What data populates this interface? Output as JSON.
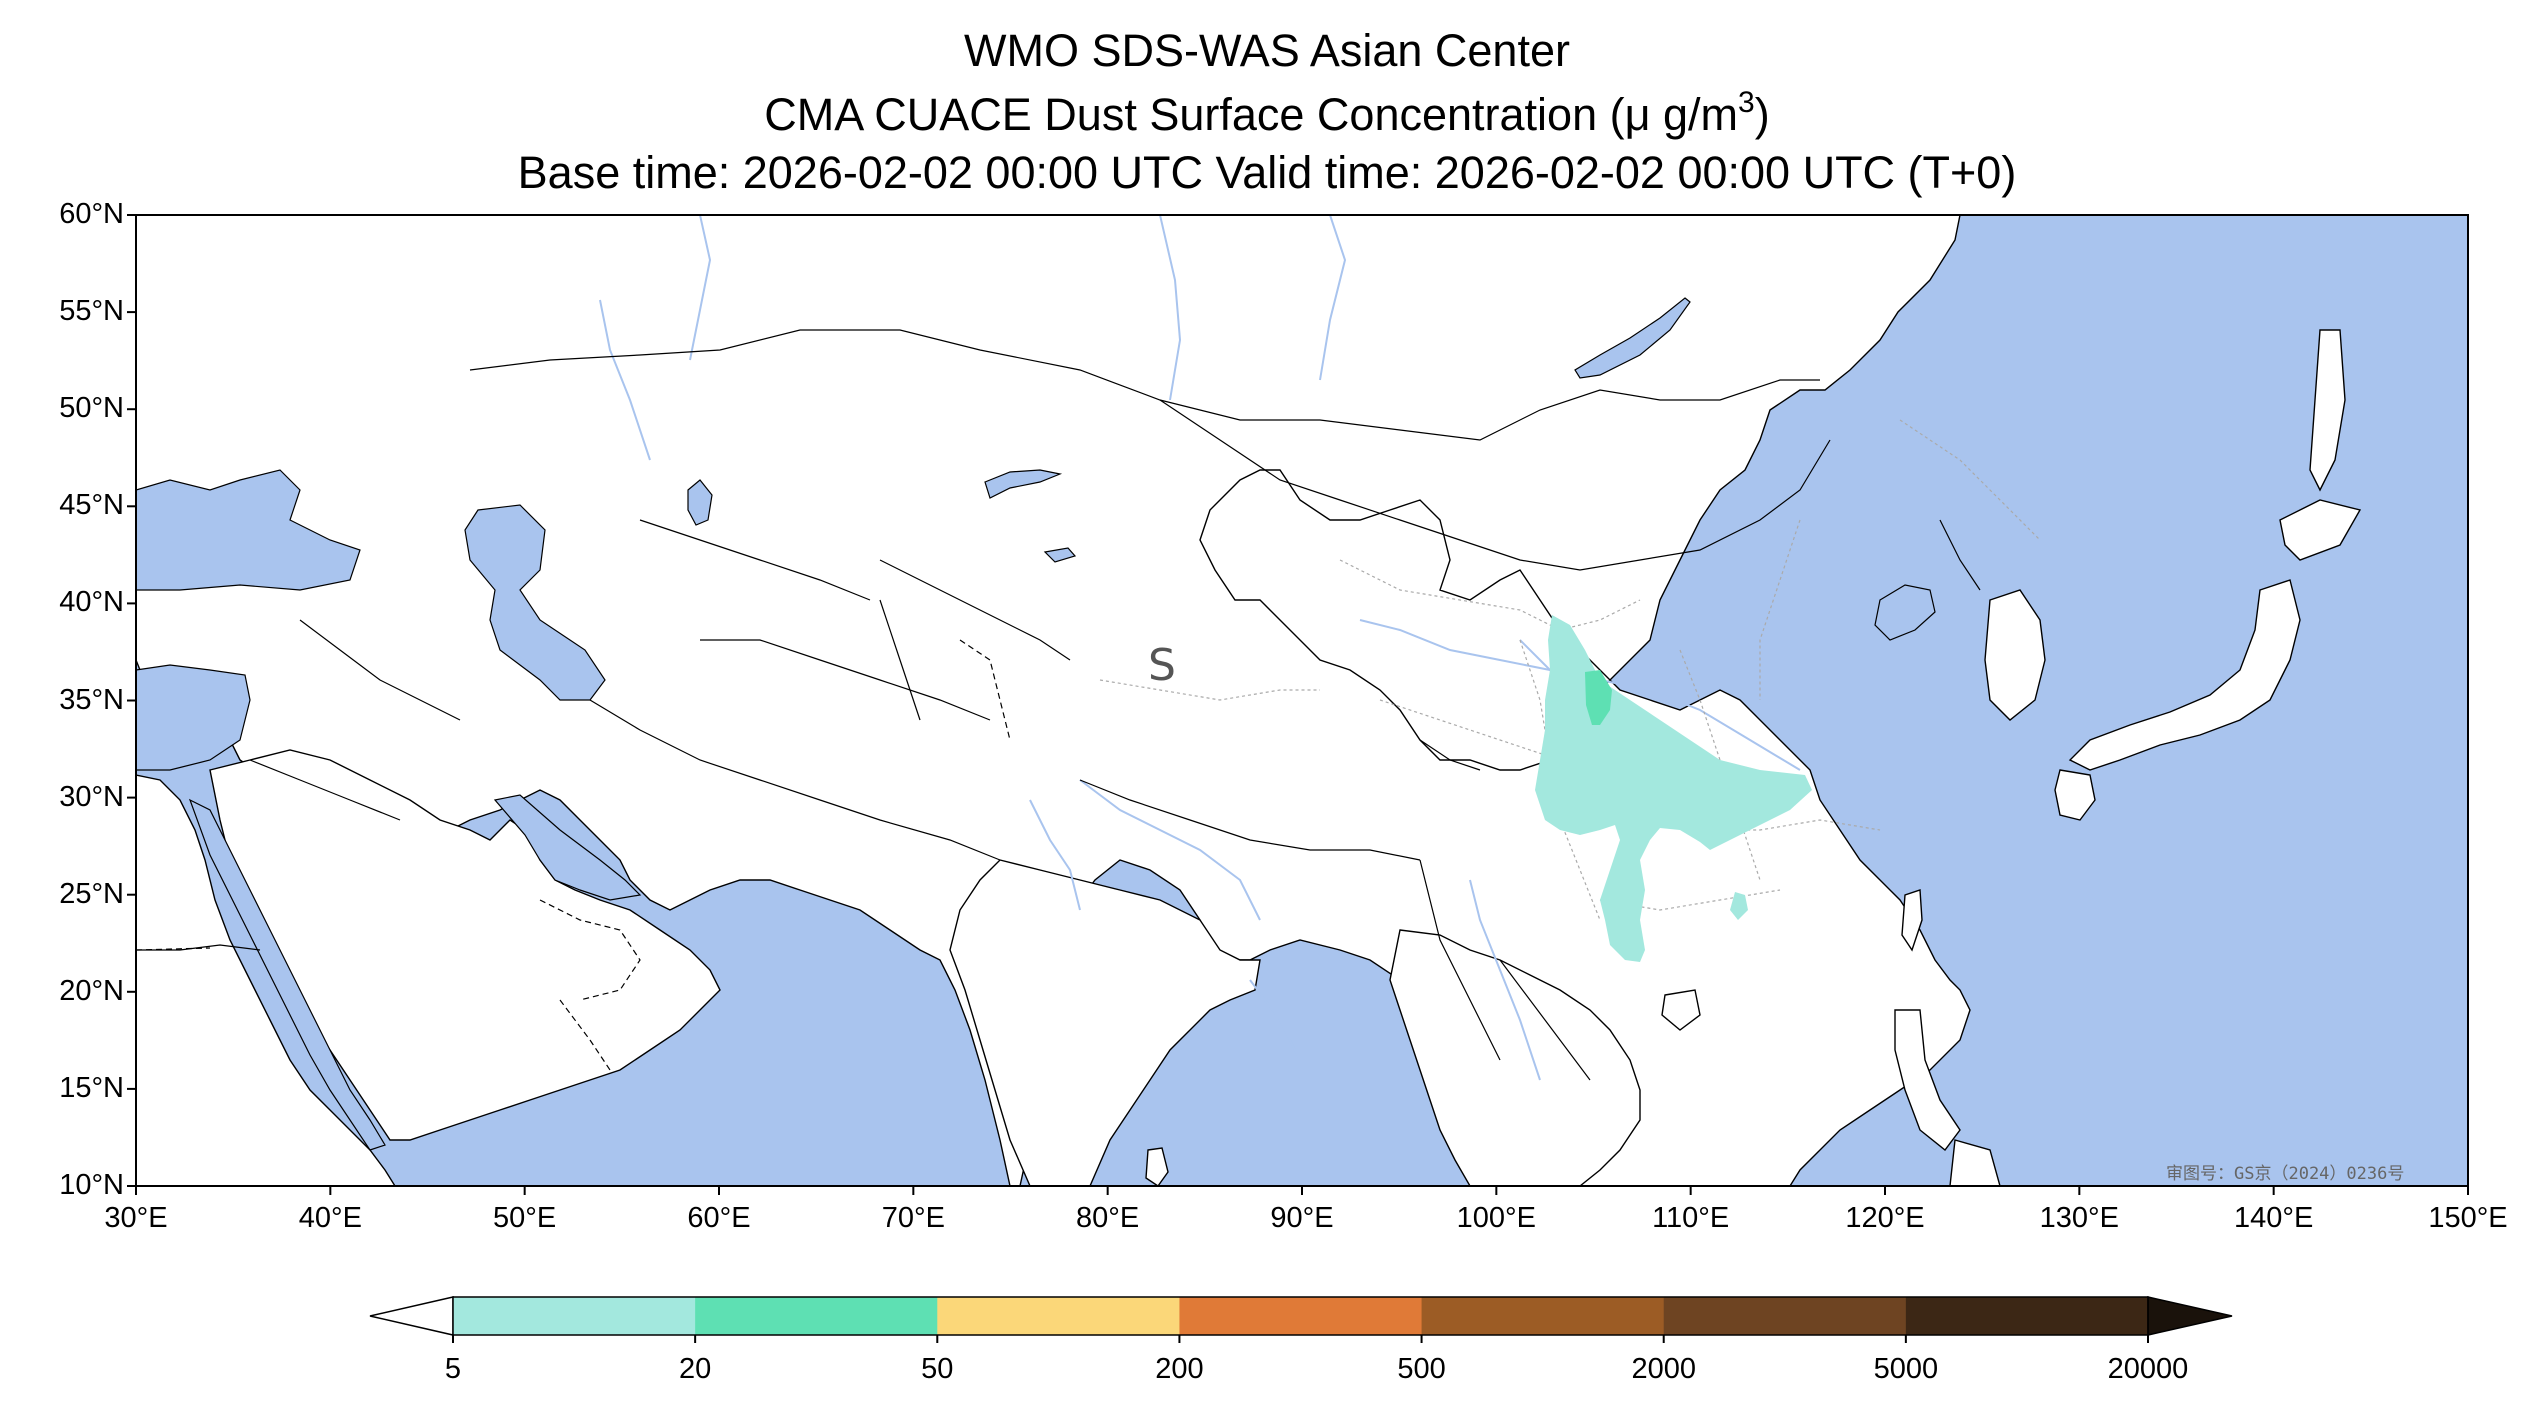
{
  "title": {
    "line1": "WMO SDS-WAS Asian Center",
    "line2_main": "CMA CUACE Dust Surface Concentration (μ g/m",
    "line2_sup": "3",
    "line2_end": ")",
    "line3": "Base time: 2026-02-02 00:00 UTC Valid time: 2026-02-02 00:00 UTC (T+0)"
  },
  "map": {
    "lat_labels": [
      "60°N",
      "55°N",
      "50°N",
      "45°N",
      "40°N",
      "35°N",
      "30°N",
      "25°N",
      "20°N",
      "15°N",
      "10°N"
    ],
    "lon_labels": [
      "30°E",
      "40°E",
      "50°E",
      "60°E",
      "70°E",
      "80°E",
      "90°E",
      "100°E",
      "110°E",
      "120°E",
      "130°E",
      "140°E",
      "150°E"
    ],
    "extent": {
      "lon_min": 30,
      "lon_max": 150,
      "lat_min": 10,
      "lat_max": 60
    },
    "overlay_letter": "S",
    "stamp": "审图号：GS京（2024）0236号",
    "colors": {
      "ocean": "#a9c4ee",
      "land": "#ffffff",
      "border": "#000000",
      "province": "#aaaaaa",
      "river": "#a9c4ee"
    }
  },
  "colorbar": {
    "ticks": [
      "5",
      "20",
      "50",
      "200",
      "500",
      "2000",
      "5000",
      "20000"
    ],
    "colors": [
      "#a3e8de",
      "#5ee0b3",
      "#fbd779",
      "#e07a37",
      "#9c5c25",
      "#6e4422",
      "#3c2715"
    ],
    "under_color": "#ffffff",
    "over_color": "#1a120b"
  },
  "dust_field": {
    "levels_present": [
      "5",
      "20"
    ],
    "fill_colors": [
      "#a3e8de",
      "#5ee0b3"
    ]
  }
}
